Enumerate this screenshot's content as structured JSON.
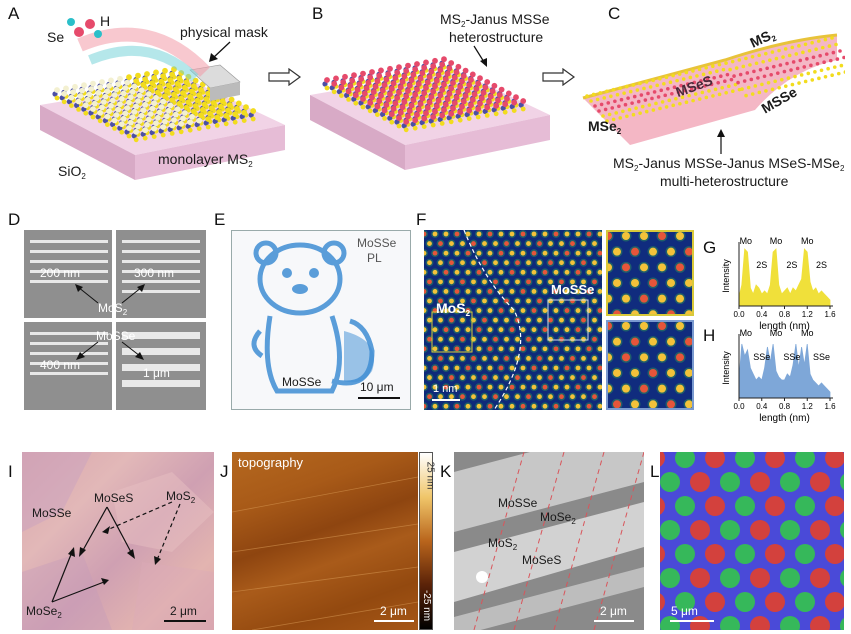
{
  "panels": {
    "A": {
      "label": "A",
      "se": "Se",
      "h": "H",
      "mask": "physical mask",
      "sio2": "SiO",
      "sio2_sub": "2",
      "monolayer": "monolayer MS",
      "monolayer_sub": "2"
    },
    "B": {
      "label": "B",
      "line1": "MS",
      "line1_sub": "2",
      "line1_rest": "-Janus MSSe",
      "line2": "heterostructure"
    },
    "C": {
      "label": "C",
      "ms2": "MS",
      "ms2_sub": "2",
      "msse_center": "MSeS",
      "msse": "MSSe",
      "mse2": "MSe",
      "mse2_sub": "2",
      "cap1_a": "MS",
      "cap1_sub1": "2",
      "cap1_b": "-Janus MSSe-Janus MSeS-MSe",
      "cap1_sub2": "2",
      "cap2": "multi-heterostructure"
    },
    "D": {
      "label": "D",
      "n200": "200 nm",
      "n300": "300 nm",
      "mos2": "MoS",
      "mos2_sub": "2",
      "mosse": "MoSSe",
      "n400": "400 nm",
      "um1": "1 μm"
    },
    "E": {
      "label": "E",
      "pl1": "MoSSe",
      "pl2": "PL",
      "mosse": "MoSSe",
      "scale": "10 μm"
    },
    "F": {
      "label": "F",
      "mos2": "MoS",
      "mos2_sub": "2",
      "mosse": "MoSSe",
      "scale": "1 nm"
    },
    "G": {
      "label": "G",
      "ylabel": "Intensity",
      "xlabel": "length (nm)",
      "ticks": [
        "0.0",
        "0.4",
        "0.8",
        "1.2",
        "1.6"
      ],
      "peaks": [
        "Mo",
        "Mo",
        "Mo"
      ],
      "between": [
        "2S",
        "2S",
        "2S"
      ]
    },
    "H": {
      "label": "H",
      "ylabel": "Intensity",
      "xlabel": "length (nm)",
      "ticks": [
        "0.0",
        "0.4",
        "0.8",
        "1.2",
        "1.6"
      ],
      "peaks": [
        "Mo",
        "Mo",
        "Mo"
      ],
      "between": [
        "SSe",
        "SSe",
        "SSe"
      ]
    },
    "I": {
      "label": "I",
      "mosse": "MoSSe",
      "moses": "MoSeS",
      "mos2": "MoS",
      "mos2_sub": "2",
      "mose2": "MoSe",
      "mose2_sub": "2",
      "scale": "2 μm"
    },
    "J": {
      "label": "J",
      "topo": "topography",
      "cb_top": "25 nm",
      "cb_bot": "-25 nm",
      "scale": "2 μm"
    },
    "K": {
      "label": "K",
      "mosse": "MoSSe",
      "mose2": "MoSe",
      "mose2_sub": "2",
      "mos2": "MoS",
      "mos2_sub": "2",
      "moses": "MoSeS",
      "scale": "2 μm"
    },
    "L": {
      "label": "L",
      "scale": "5 μm"
    }
  },
  "colors": {
    "substrate": "#e9c6dc",
    "mo": "#4b4fa5",
    "s": "#f2dc1e",
    "se": "#e64a6b",
    "h": "#2bbfc9",
    "pl_blue": "#3f8ed4",
    "G_fill": "#f0e03a",
    "H_fill": "#7ea7d8"
  },
  "chart_data": [
    {
      "type": "area",
      "title": "",
      "xlabel": "length (nm)",
      "ylabel": "Intensity",
      "xlim": [
        0.0,
        1.6
      ],
      "x": [
        0.0,
        0.05,
        0.1,
        0.15,
        0.2,
        0.25,
        0.3,
        0.35,
        0.4,
        0.45,
        0.5,
        0.55,
        0.6,
        0.65,
        0.7,
        0.75,
        0.8,
        0.85,
        0.9,
        0.95,
        1.0,
        1.05,
        1.1,
        1.15,
        1.2,
        1.25,
        1.3,
        1.35,
        1.4,
        1.45,
        1.5,
        1.55,
        1.6
      ],
      "series": [
        {
          "values": [
            0.15,
            0.35,
            0.95,
            0.9,
            0.3,
            0.2,
            0.35,
            0.3,
            0.2,
            0.25,
            0.2,
            0.35,
            0.9,
            0.95,
            0.35,
            0.2,
            0.25,
            0.3,
            0.2,
            0.3,
            0.25,
            0.35,
            0.45,
            0.95,
            0.9,
            0.4,
            0.25,
            0.3,
            0.2,
            0.25,
            0.2,
            0.15,
            0.1
          ]
        }
      ],
      "annotations": [
        "Mo",
        "Mo",
        "Mo",
        "2S",
        "2S",
        "2S"
      ]
    },
    {
      "type": "area",
      "title": "",
      "xlabel": "length (nm)",
      "ylabel": "Intensity",
      "xlim": [
        0.0,
        1.6
      ],
      "x": [
        0.0,
        0.05,
        0.1,
        0.15,
        0.2,
        0.25,
        0.3,
        0.35,
        0.4,
        0.45,
        0.5,
        0.55,
        0.6,
        0.65,
        0.7,
        0.75,
        0.8,
        0.85,
        0.9,
        0.95,
        1.0,
        1.05,
        1.1,
        1.15,
        1.2,
        1.25,
        1.3,
        1.35,
        1.4,
        1.45,
        1.5,
        1.55,
        1.6
      ],
      "series": [
        {
          "values": [
            0.3,
            0.9,
            0.7,
            0.8,
            0.5,
            0.4,
            0.3,
            0.35,
            0.3,
            0.5,
            0.85,
            0.6,
            0.9,
            0.45,
            0.35,
            0.3,
            0.3,
            0.4,
            0.35,
            0.55,
            0.9,
            0.5,
            0.85,
            0.55,
            0.9,
            0.4,
            0.3,
            0.25,
            0.2,
            0.25,
            0.2,
            0.15,
            0.1
          ]
        }
      ],
      "annotations": [
        "Mo",
        "Mo",
        "Mo",
        "SSe",
        "SSe",
        "SSe"
      ]
    }
  ]
}
